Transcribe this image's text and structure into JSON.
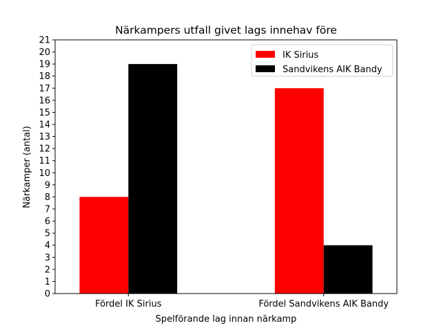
{
  "chart_data": {
    "type": "bar",
    "title": "Närkampers utfall givet lags innehav före",
    "xlabel": "Spelförande lag innan närkamp",
    "ylabel": "Närkamper (antal)",
    "categories": [
      "Fördel IK Sirius",
      "Fördel Sandvikens AIK Bandy"
    ],
    "series": [
      {
        "name": "IK Sirius",
        "values": [
          8,
          17
        ],
        "color": "#ff0000"
      },
      {
        "name": "Sandvikens AIK Bandy",
        "values": [
          19,
          4
        ],
        "color": "#000000"
      }
    ],
    "ylim": [
      0,
      21
    ],
    "yticks": [
      0,
      1,
      2,
      3,
      4,
      5,
      6,
      7,
      8,
      9,
      10,
      11,
      12,
      13,
      14,
      15,
      16,
      17,
      18,
      19,
      20,
      21
    ],
    "legend": "top-right",
    "grid": false
  }
}
